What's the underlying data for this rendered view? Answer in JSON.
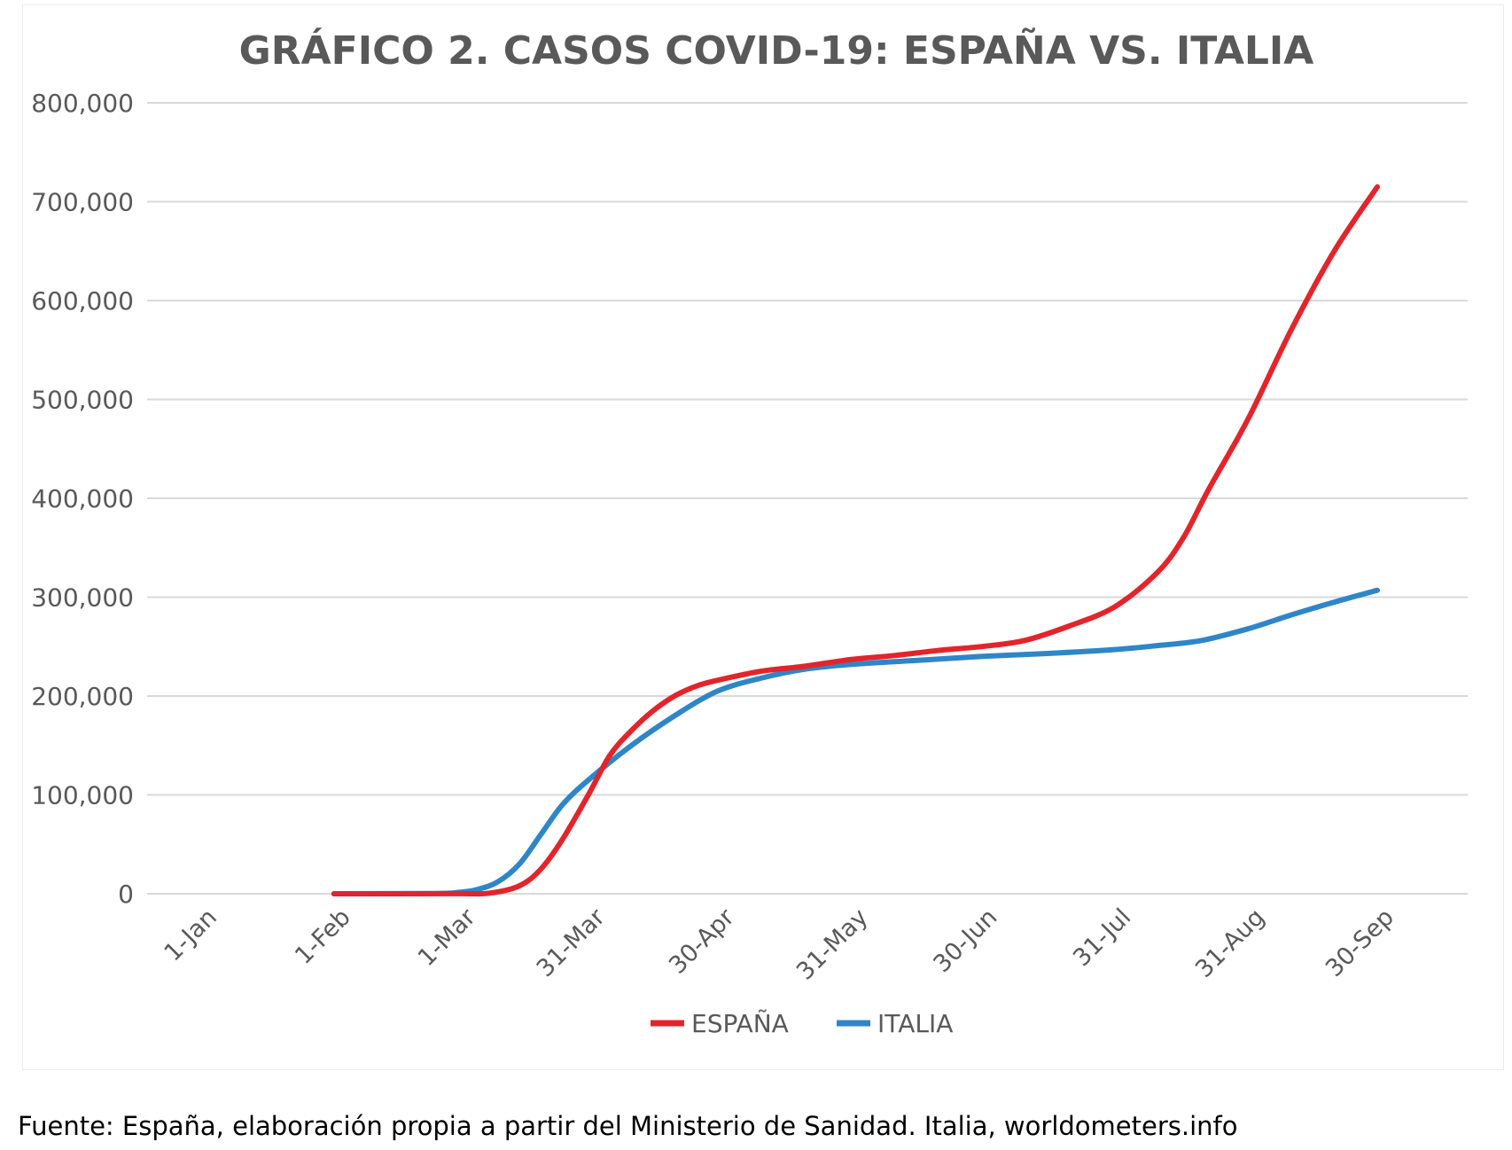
{
  "chart_data": {
    "type": "line",
    "title": "GRÁFICO 2. CASOS COVID-19: ESPAÑA VS. ITALIA",
    "xlabel": "",
    "ylabel": "",
    "ylim": [
      0,
      800000
    ],
    "y_ticks": [
      "0",
      "100,000",
      "200,000",
      "300,000",
      "400,000",
      "500,000",
      "600,000",
      "700,000",
      "800,000"
    ],
    "y_tick_values": [
      0,
      100000,
      200000,
      300000,
      400000,
      500000,
      600000,
      700000,
      800000
    ],
    "x_ticks": [
      "1-Jan",
      "1-Feb",
      "1-Mar",
      "31-Mar",
      "30-Apr",
      "31-May",
      "30-Jun",
      "31-Jul",
      "31-Aug",
      "30-Sep"
    ],
    "x_tick_dates": [
      "2020-01-01",
      "2020-02-01",
      "2020-03-01",
      "2020-03-31",
      "2020-04-30",
      "2020-05-31",
      "2020-06-30",
      "2020-07-31",
      "2020-08-31",
      "2020-09-30"
    ],
    "grid": true,
    "legend_position": "bottom",
    "series": [
      {
        "name": "ESPAÑA",
        "color": "#e3242b",
        "points": [
          [
            "2020-02-01",
            0
          ],
          [
            "2020-03-01",
            100
          ],
          [
            "2020-03-08",
            600
          ],
          [
            "2020-03-15",
            8000
          ],
          [
            "2020-03-20",
            25000
          ],
          [
            "2020-03-25",
            55000
          ],
          [
            "2020-03-31",
            100000
          ],
          [
            "2020-04-05",
            140000
          ],
          [
            "2020-04-10",
            165000
          ],
          [
            "2020-04-15",
            185000
          ],
          [
            "2020-04-20",
            200000
          ],
          [
            "2020-04-25",
            210000
          ],
          [
            "2020-04-30",
            216000
          ],
          [
            "2020-05-10",
            225000
          ],
          [
            "2020-05-20",
            230000
          ],
          [
            "2020-05-31",
            237000
          ],
          [
            "2020-06-10",
            241000
          ],
          [
            "2020-06-20",
            246000
          ],
          [
            "2020-06-30",
            250000
          ],
          [
            "2020-07-10",
            256000
          ],
          [
            "2020-07-20",
            270000
          ],
          [
            "2020-07-31",
            290000
          ],
          [
            "2020-08-10",
            325000
          ],
          [
            "2020-08-16",
            360000
          ],
          [
            "2020-08-22",
            410000
          ],
          [
            "2020-08-31",
            480000
          ],
          [
            "2020-09-10",
            570000
          ],
          [
            "2020-09-20",
            650000
          ],
          [
            "2020-09-30",
            715000
          ]
        ]
      },
      {
        "name": "ITALIA",
        "color": "#2e86c8",
        "points": [
          [
            "2020-02-01",
            0
          ],
          [
            "2020-02-25",
            300
          ],
          [
            "2020-03-01",
            1500
          ],
          [
            "2020-03-05",
            4000
          ],
          [
            "2020-03-10",
            12000
          ],
          [
            "2020-03-15",
            30000
          ],
          [
            "2020-03-20",
            60000
          ],
          [
            "2020-03-25",
            90000
          ],
          [
            "2020-03-31",
            115000
          ],
          [
            "2020-04-10",
            150000
          ],
          [
            "2020-04-20",
            180000
          ],
          [
            "2020-04-30",
            205000
          ],
          [
            "2020-05-10",
            218000
          ],
          [
            "2020-05-20",
            227000
          ],
          [
            "2020-05-31",
            232000
          ],
          [
            "2020-06-15",
            236000
          ],
          [
            "2020-06-30",
            240000
          ],
          [
            "2020-07-15",
            243000
          ],
          [
            "2020-07-31",
            247000
          ],
          [
            "2020-08-10",
            251000
          ],
          [
            "2020-08-20",
            256000
          ],
          [
            "2020-08-31",
            268000
          ],
          [
            "2020-09-10",
            282000
          ],
          [
            "2020-09-20",
            295000
          ],
          [
            "2020-09-30",
            307000
          ]
        ]
      }
    ]
  },
  "source_note": "Fuente: España, elaboración propia a partir del Ministerio de Sanidad. Italia, worldometers.info"
}
